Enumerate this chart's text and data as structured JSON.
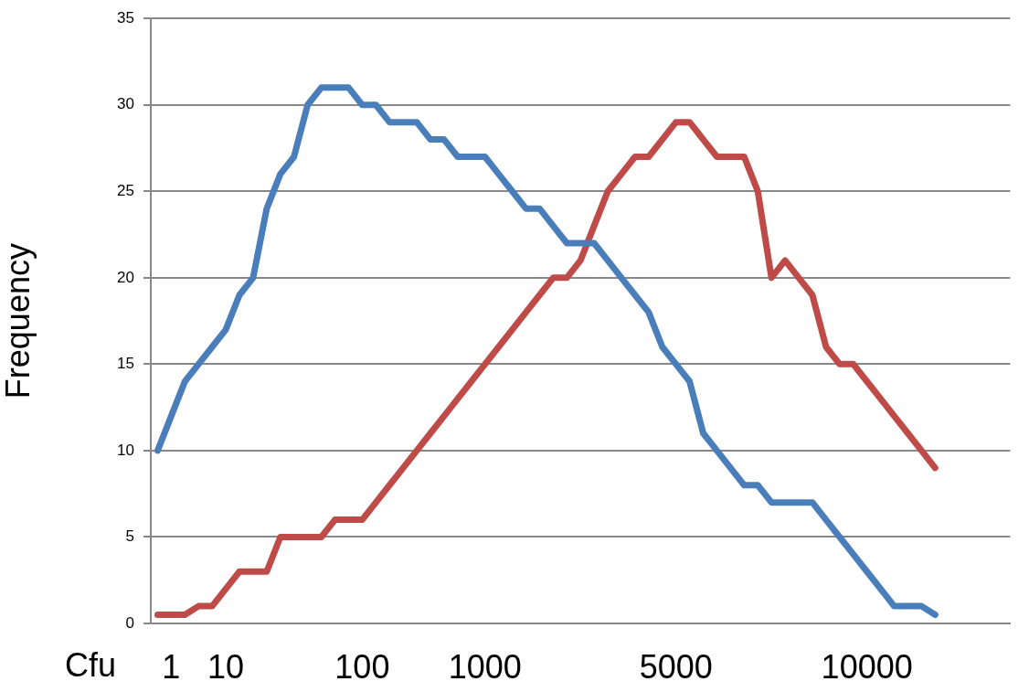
{
  "chart_data": {
    "type": "line",
    "xlabel": "Cfu",
    "ylabel": "Frequency",
    "categories": [
      null,
      "1",
      null,
      null,
      null,
      "10",
      null,
      null,
      null,
      null,
      null,
      null,
      null,
      null,
      null,
      "100",
      null,
      null,
      null,
      null,
      null,
      null,
      null,
      null,
      "1000",
      null,
      null,
      null,
      null,
      null,
      null,
      null,
      null,
      null,
      null,
      null,
      null,
      null,
      "5000",
      null,
      null,
      null,
      null,
      null,
      null,
      null,
      null,
      null,
      null,
      null,
      null,
      null,
      "10000",
      null,
      null,
      null,
      null,
      null,
      null,
      null,
      null,
      null,
      null
    ],
    "series": [
      {
        "color": "#4a7ebb",
        "values": [
          10,
          12,
          14,
          15,
          16,
          17,
          19,
          20,
          24,
          26,
          27,
          30,
          31,
          31,
          31,
          30,
          30,
          29,
          29,
          29,
          28,
          28,
          27,
          27,
          27,
          26,
          25,
          24,
          24,
          23,
          22,
          22,
          22,
          21,
          20,
          19,
          18,
          16,
          15,
          14,
          11,
          10,
          9,
          8,
          8,
          7,
          7,
          7,
          7,
          6,
          5,
          4,
          3,
          2,
          1,
          1,
          1,
          0.5,
          null,
          null,
          null,
          null,
          null
        ]
      },
      {
        "color": "#be4b48",
        "values": [
          0.5,
          0.5,
          0.5,
          1,
          1,
          2,
          3,
          3,
          3,
          5,
          5,
          5,
          5,
          6,
          6,
          6,
          7,
          8,
          9,
          10,
          11,
          12,
          13,
          14,
          15,
          16,
          17,
          18,
          19,
          20,
          20,
          21,
          23,
          25,
          26,
          27,
          27,
          28,
          29,
          29,
          28,
          27,
          27,
          27,
          25,
          20,
          21,
          20,
          19,
          16,
          15,
          15,
          14,
          13,
          12,
          11,
          10,
          9,
          null,
          null,
          null,
          null,
          null
        ]
      }
    ],
    "ylim": [
      0,
      35
    ],
    "yticks": [
      0,
      5,
      10,
      15,
      20,
      25,
      30,
      35
    ],
    "grid": "y",
    "marker": "none",
    "line_style": "solid"
  }
}
